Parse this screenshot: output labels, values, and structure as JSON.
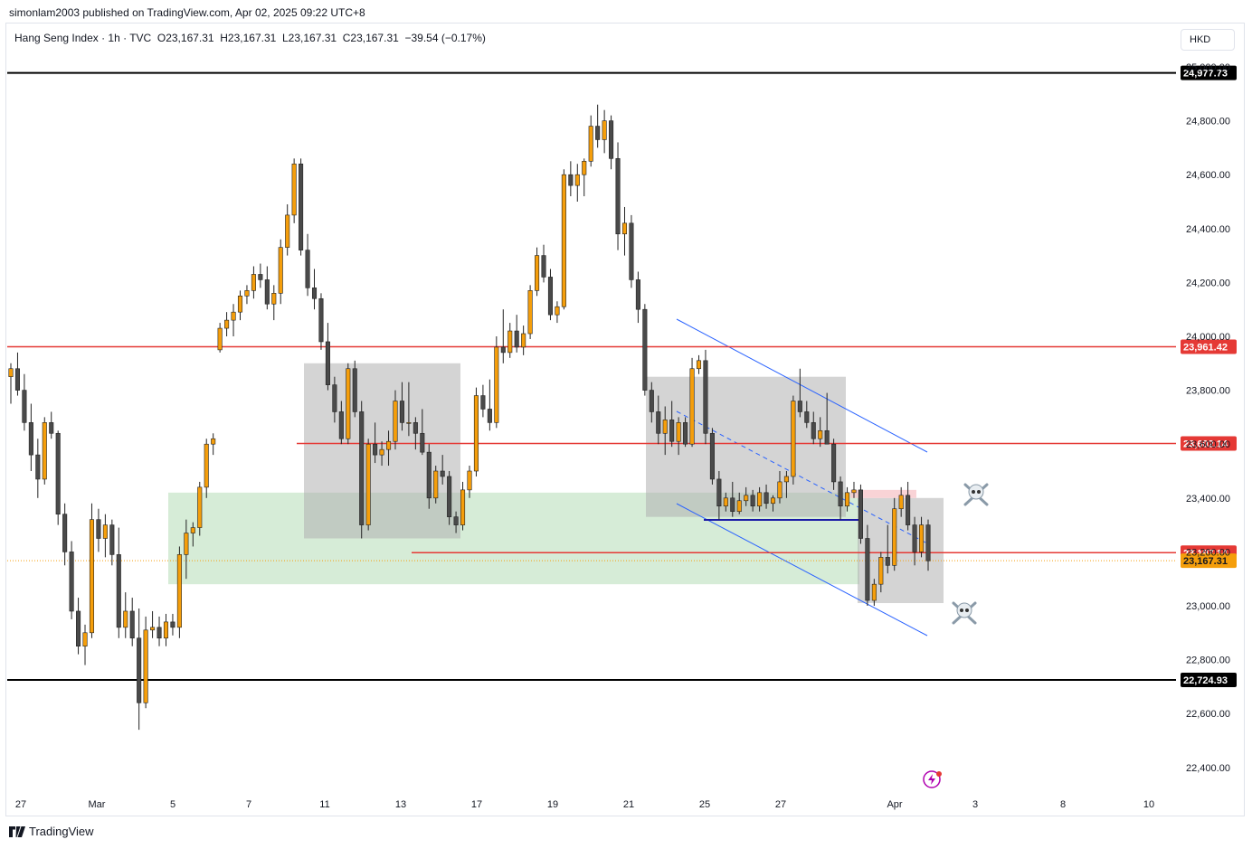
{
  "header": {
    "published": "simonlam2003 published on TradingView.com, Apr 02, 2025 09:22 UTC+8"
  },
  "legend": {
    "symbol": "Hang Seng Index · 1h · TVC",
    "open": "O23,167.31",
    "high": "H23,167.31",
    "low": "L23,167.31",
    "close": "C23,167.31",
    "change": "−39.54 (−0.17%)"
  },
  "currency": "HKD",
  "footer": {
    "brand": "TradingView"
  },
  "colors": {
    "up": "#f59e0b",
    "down": "#4a4a4a",
    "red_line": "#e53935",
    "black_line": "#000000",
    "channel": "#2962ff",
    "support_line": "#1a1aa6",
    "zone_green": "#c8e6c9",
    "zone_gray": "#b0b0b0",
    "zone_pink": "#f8c8cc",
    "last_price": "#f59e0b"
  },
  "chart_data": {
    "type": "candlestick",
    "y_axis": {
      "range": [
        22350,
        25050
      ],
      "ticks": [
        "22,400.00",
        "22,600.00",
        "22,800.00",
        "23,000.00",
        "23,200.00",
        "23,400.00",
        "23,600.00",
        "23,800.00",
        "24,000.00",
        "24,200.00",
        "24,400.00",
        "24,600.00",
        "24,800.00",
        "25,000.00"
      ]
    },
    "x_axis": {
      "ticks": [
        "27",
        "Mar",
        "5",
        "7",
        "11",
        "13",
        "17",
        "19",
        "21",
        "25",
        "27",
        "Apr",
        "3",
        "8",
        "10"
      ]
    },
    "horizontal_levels": [
      {
        "value": 24977.73,
        "label": "24,977.73",
        "style": "black"
      },
      {
        "value": 23961.42,
        "label": "23,961.42",
        "style": "red"
      },
      {
        "value": 23602.14,
        "label": "23,602.14",
        "style": "red"
      },
      {
        "value": 23197.14,
        "label": "23,197.14",
        "style": "red"
      },
      {
        "value": 23167.31,
        "label": "23,167.31",
        "style": "last"
      },
      {
        "value": 22724.93,
        "label": "22,724.93",
        "style": "black"
      }
    ],
    "zones": [
      {
        "kind": "green",
        "from": "Mar 5",
        "to": "Mar 31",
        "top": 23420,
        "bottom": 23080
      },
      {
        "kind": "gray",
        "from": "Mar 10",
        "to": "Mar 14",
        "top": 23900,
        "bottom": 23250
      },
      {
        "kind": "gray",
        "from": "Mar 21",
        "to": "Mar 28",
        "top": 23850,
        "bottom": 23330
      },
      {
        "kind": "gray",
        "from": "Mar 31",
        "to": "Apr 2",
        "top": 23400,
        "bottom": 23010
      },
      {
        "kind": "pink",
        "from": "Mar 31",
        "to": "Apr 1",
        "top": 23430,
        "bottom": 23400
      }
    ],
    "candles": [
      [
        23850,
        23900,
        23750,
        23880
      ],
      [
        23880,
        23940,
        23780,
        23800
      ],
      [
        23800,
        23860,
        23650,
        23680
      ],
      [
        23680,
        23750,
        23500,
        23560
      ],
      [
        23560,
        23620,
        23400,
        23470
      ],
      [
        23470,
        23700,
        23450,
        23680
      ],
      [
        23680,
        23720,
        23620,
        23640
      ],
      [
        23640,
        23650,
        23300,
        23340
      ],
      [
        23340,
        23380,
        23150,
        23200
      ],
      [
        23200,
        23240,
        22950,
        22980
      ],
      [
        22980,
        23030,
        22820,
        22850
      ],
      [
        22850,
        22930,
        22780,
        22900
      ],
      [
        22900,
        23380,
        22880,
        23320
      ],
      [
        23320,
        23360,
        23200,
        23250
      ],
      [
        23250,
        23340,
        23180,
        23300
      ],
      [
        23300,
        23320,
        23150,
        23190
      ],
      [
        23190,
        23290,
        22880,
        22920
      ],
      [
        22920,
        23050,
        22880,
        22980
      ],
      [
        22980,
        23030,
        22850,
        22880
      ],
      [
        22880,
        22990,
        22540,
        22640
      ],
      [
        22640,
        22960,
        22620,
        22910
      ],
      [
        22910,
        22980,
        22880,
        22920
      ],
      [
        22920,
        22960,
        22850,
        22880
      ],
      [
        22880,
        22970,
        22850,
        22940
      ],
      [
        22940,
        22970,
        22890,
        22920
      ],
      [
        22920,
        23220,
        22880,
        23190
      ],
      [
        23190,
        23320,
        23100,
        23270
      ],
      [
        23270,
        23310,
        23220,
        23290
      ],
      [
        23290,
        23460,
        23260,
        23440
      ],
      [
        23440,
        23620,
        23400,
        23600
      ],
      [
        23600,
        23640,
        23560,
        23620
      ],
      [
        23950,
        24050,
        23940,
        24030
      ],
      [
        24030,
        24090,
        24000,
        24060
      ],
      [
        24060,
        24120,
        24000,
        24090
      ],
      [
        24090,
        24170,
        24060,
        24150
      ],
      [
        24150,
        24190,
        24120,
        24170
      ],
      [
        24170,
        24260,
        24140,
        24230
      ],
      [
        24230,
        24270,
        24180,
        24210
      ],
      [
        24210,
        24260,
        24100,
        24120
      ],
      [
        24120,
        24190,
        24060,
        24160
      ],
      [
        24160,
        24360,
        24120,
        24330
      ],
      [
        24330,
        24490,
        24300,
        24450
      ],
      [
        24450,
        24660,
        24420,
        24640
      ],
      [
        24640,
        24660,
        24300,
        24320
      ],
      [
        24320,
        24380,
        24150,
        24180
      ],
      [
        24180,
        24250,
        24100,
        24140
      ],
      [
        24140,
        24160,
        23950,
        23980
      ],
      [
        23980,
        24050,
        23800,
        23820
      ],
      [
        23820,
        23850,
        23680,
        23720
      ],
      [
        23720,
        23760,
        23600,
        23620
      ],
      [
        23620,
        23900,
        23600,
        23880
      ],
      [
        23880,
        23910,
        23700,
        23720
      ],
      [
        23720,
        23760,
        23250,
        23300
      ],
      [
        23300,
        23620,
        23280,
        23600
      ],
      [
        23600,
        23680,
        23530,
        23560
      ],
      [
        23560,
        23610,
        23520,
        23580
      ],
      [
        23580,
        23650,
        23520,
        23610
      ],
      [
        23610,
        23800,
        23580,
        23760
      ],
      [
        23760,
        23830,
        23650,
        23680
      ],
      [
        23680,
        23830,
        23630,
        23680
      ],
      [
        23680,
        23700,
        23580,
        23640
      ],
      [
        23640,
        23730,
        23560,
        23570
      ],
      [
        23570,
        23600,
        23360,
        23400
      ],
      [
        23400,
        23520,
        23380,
        23500
      ],
      [
        23500,
        23560,
        23450,
        23480
      ],
      [
        23480,
        23500,
        23300,
        23330
      ],
      [
        23330,
        23350,
        23270,
        23300
      ],
      [
        23300,
        23460,
        23280,
        23430
      ],
      [
        23430,
        23520,
        23400,
        23500
      ],
      [
        23500,
        23810,
        23480,
        23780
      ],
      [
        23780,
        23820,
        23700,
        23730
      ],
      [
        23730,
        23840,
        23650,
        23680
      ],
      [
        23680,
        24000,
        23660,
        23960
      ],
      [
        23960,
        24100,
        23900,
        23940
      ],
      [
        23940,
        24050,
        23920,
        24020
      ],
      [
        24020,
        24080,
        23940,
        23960
      ],
      [
        23960,
        24040,
        23930,
        24010
      ],
      [
        24010,
        24190,
        23990,
        24170
      ],
      [
        24170,
        24330,
        24150,
        24300
      ],
      [
        24300,
        24340,
        24200,
        24220
      ],
      [
        24220,
        24250,
        24060,
        24080
      ],
      [
        24080,
        24130,
        24050,
        24110
      ],
      [
        24110,
        24620,
        24100,
        24600
      ],
      [
        24600,
        24650,
        24520,
        24560
      ],
      [
        24560,
        24640,
        24500,
        24600
      ],
      [
        24600,
        24660,
        24520,
        24650
      ],
      [
        24650,
        24820,
        24630,
        24780
      ],
      [
        24780,
        24860,
        24700,
        24730
      ],
      [
        24730,
        24840,
        24680,
        24800
      ],
      [
        24800,
        24820,
        24620,
        24660
      ],
      [
        24660,
        24720,
        24320,
        24380
      ],
      [
        24380,
        24480,
        24300,
        24420
      ],
      [
        24420,
        24450,
        24180,
        24210
      ],
      [
        24210,
        24240,
        24050,
        24100
      ],
      [
        24100,
        24120,
        23780,
        23800
      ],
      [
        23800,
        23830,
        23680,
        23720
      ],
      [
        23720,
        23780,
        23600,
        23640
      ],
      [
        23640,
        23740,
        23560,
        23690
      ],
      [
        23690,
        23760,
        23590,
        23610
      ],
      [
        23610,
        23700,
        23560,
        23680
      ],
      [
        23680,
        23700,
        23590,
        23600
      ],
      [
        23600,
        23920,
        23590,
        23880
      ],
      [
        23880,
        23930,
        23860,
        23910
      ],
      [
        23910,
        23950,
        23600,
        23640
      ],
      [
        23640,
        23660,
        23450,
        23470
      ],
      [
        23470,
        23500,
        23320,
        23370
      ],
      [
        23370,
        23420,
        23350,
        23400
      ],
      [
        23400,
        23460,
        23330,
        23350
      ],
      [
        23350,
        23420,
        23340,
        23390
      ],
      [
        23390,
        23440,
        23370,
        23410
      ],
      [
        23410,
        23430,
        23350,
        23370
      ],
      [
        23370,
        23440,
        23350,
        23420
      ],
      [
        23420,
        23450,
        23360,
        23380
      ],
      [
        23380,
        23410,
        23350,
        23400
      ],
      [
        23400,
        23500,
        23380,
        23460
      ],
      [
        23460,
        23500,
        23400,
        23480
      ],
      [
        23480,
        23780,
        23450,
        23760
      ],
      [
        23760,
        23880,
        23700,
        23720
      ],
      [
        23720,
        23760,
        23660,
        23680
      ],
      [
        23680,
        23720,
        23600,
        23620
      ],
      [
        23620,
        23700,
        23590,
        23650
      ],
      [
        23650,
        23790,
        23620,
        23600
      ],
      [
        23600,
        23620,
        23430,
        23460
      ],
      [
        23460,
        23480,
        23320,
        23370
      ],
      [
        23370,
        23440,
        23350,
        23420
      ],
      [
        23420,
        23460,
        23400,
        23430
      ],
      [
        23430,
        23450,
        23230,
        23250
      ],
      [
        23250,
        23300,
        23000,
        23020
      ],
      [
        23020,
        23100,
        23000,
        23080
      ],
      [
        23080,
        23200,
        23050,
        23180
      ],
      [
        23180,
        23300,
        23120,
        23150
      ],
      [
        23150,
        23400,
        23130,
        23360
      ],
      [
        23360,
        23440,
        23330,
        23410
      ],
      [
        23410,
        23460,
        23280,
        23300
      ],
      [
        23300,
        23330,
        23150,
        23200
      ],
      [
        23200,
        23330,
        23180,
        23300
      ],
      [
        23300,
        23320,
        23130,
        23167
      ]
    ]
  }
}
